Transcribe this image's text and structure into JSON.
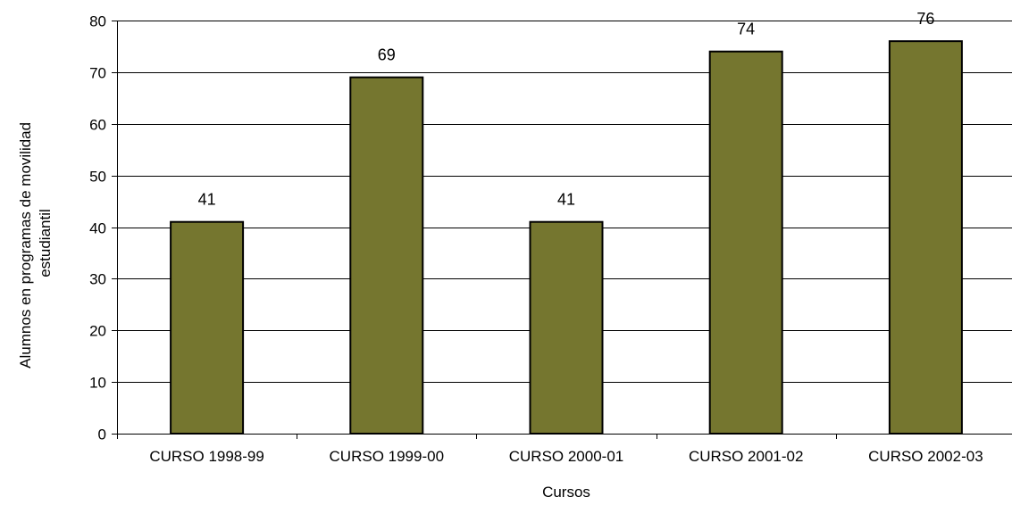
{
  "chart_data": {
    "type": "bar",
    "categories": [
      "CURSO 1998-99",
      "CURSO 1999-00",
      "CURSO 2000-01",
      "CURSO 2001-02",
      "CURSO 2002-03"
    ],
    "values": [
      41,
      69,
      41,
      74,
      76
    ],
    "data_labels": [
      "41",
      "69",
      "41",
      "74",
      "76"
    ],
    "xlabel": "Cursos",
    "ylabel_lines": [
      "Alumnos en programas de movilidad",
      "estudiantil"
    ],
    "ylim": [
      0,
      80
    ],
    "yticks": [
      0,
      10,
      20,
      30,
      40,
      50,
      60,
      70,
      80
    ],
    "grid": true,
    "legend": "none",
    "bar_color": "#75762F"
  }
}
